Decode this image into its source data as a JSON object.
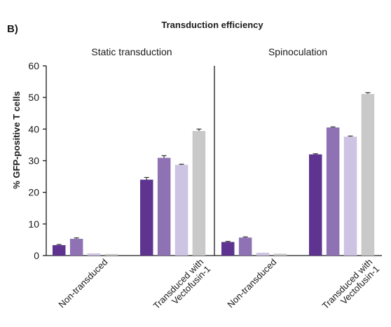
{
  "figure": {
    "panel_label": "B)",
    "title": "Transduction efficiency"
  },
  "chart_data": {
    "type": "bar",
    "title": "Transduction efficiency",
    "ylabel": "% GFP-positive T cells",
    "xlabel": "",
    "ylim": [
      0,
      60
    ],
    "yticks": [
      0,
      10,
      20,
      30,
      40,
      50,
      60
    ],
    "grid": false,
    "legend": "none",
    "bar_colors": [
      "#5e3490",
      "#8e72b4",
      "#cdc3e2",
      "#c9c9c9"
    ],
    "panels": [
      {
        "title": "Static transduction",
        "categories": [
          {
            "lines": [
              "Non-transduced"
            ],
            "values": [
              3.3,
              5.3,
              0.7,
              0.5
            ],
            "errors": [
              0.2,
              0.3,
              0.0,
              0.0
            ]
          },
          {
            "lines": [
              "Transduced with",
              "Vectofusin-1"
            ],
            "values": [
              24.0,
              30.9,
              28.7,
              39.4
            ],
            "errors": [
              0.7,
              0.7,
              0.2,
              0.6
            ]
          }
        ]
      },
      {
        "title": "Spinoculation",
        "categories": [
          {
            "lines": [
              "Non-transduced"
            ],
            "values": [
              4.3,
              5.7,
              0.9,
              0.6
            ],
            "errors": [
              0.2,
              0.2,
              0.0,
              0.0
            ]
          },
          {
            "lines": [
              "Transduced with",
              "Vectofusin-1"
            ],
            "values": [
              32.0,
              40.5,
              37.6,
              51.1
            ],
            "errors": [
              0.2,
              0.2,
              0.2,
              0.4
            ]
          }
        ]
      }
    ]
  }
}
